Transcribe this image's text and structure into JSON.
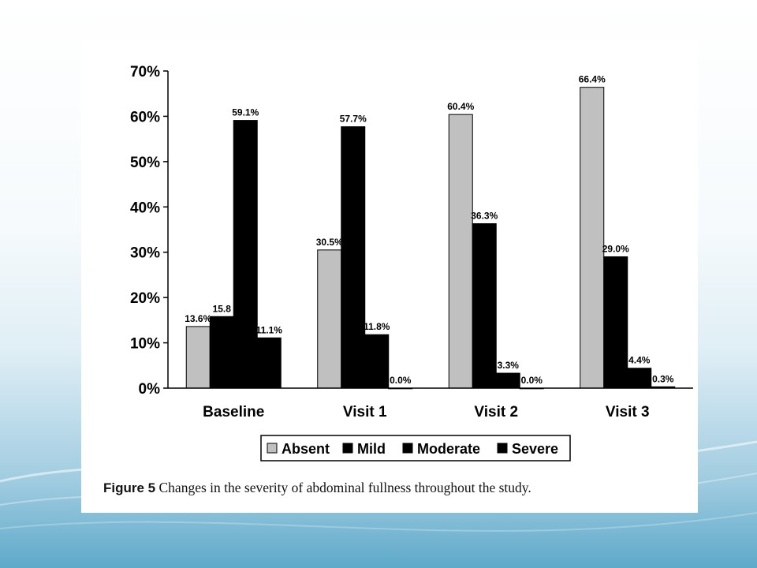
{
  "chart_data": {
    "type": "bar",
    "categories": [
      "Baseline",
      "Visit 1",
      "Visit 2",
      "Visit 3"
    ],
    "series": [
      {
        "name": "Absent",
        "color": "#c0c0c0",
        "values": [
          13.6,
          30.5,
          60.4,
          66.4
        ],
        "labels": [
          "13.6%",
          "30.5%",
          "60.4%",
          "66.4%"
        ]
      },
      {
        "name": "Mild",
        "color": "#000000",
        "values": [
          15.8,
          57.7,
          36.3,
          29.0
        ],
        "labels": [
          "15.8",
          "57.7%",
          "36.3%",
          "29.0%"
        ]
      },
      {
        "name": "Moderate",
        "color": "#000000",
        "values": [
          59.1,
          11.8,
          3.3,
          4.4
        ],
        "labels": [
          "59.1%",
          "11.8%",
          "3.3%",
          "4.4%"
        ]
      },
      {
        "name": "Severe",
        "color": "#000000",
        "values": [
          11.1,
          0.0,
          0.0,
          0.3
        ],
        "labels": [
          "11.1%",
          "0.0%",
          "0.0%",
          "0.3%"
        ]
      }
    ],
    "ylim": [
      0,
      70
    ],
    "yticks": [
      "0%",
      "10%",
      "20%",
      "30%",
      "40%",
      "50%",
      "60%",
      "70%"
    ],
    "grid": false,
    "legend_position": "bottom"
  },
  "caption": {
    "label": "Figure 5",
    "text": "Changes in the severity of abdominal fullness throughout the study."
  }
}
